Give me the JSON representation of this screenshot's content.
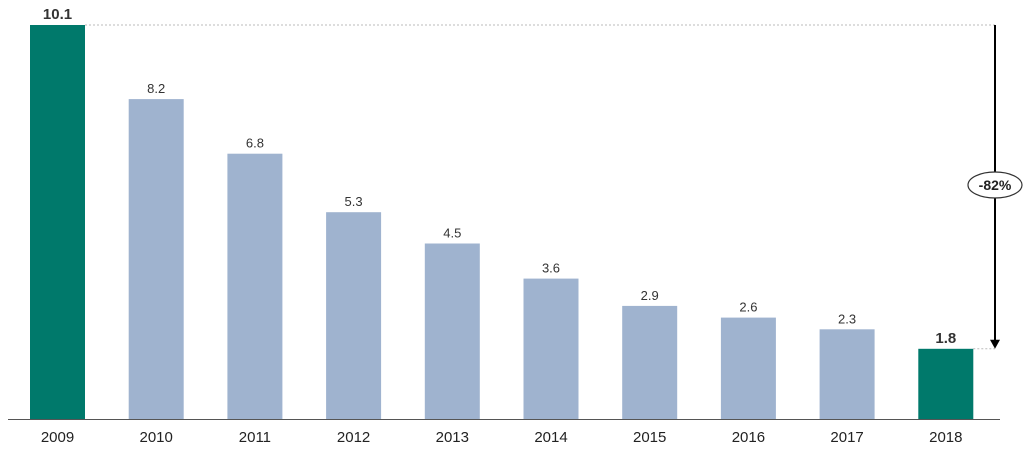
{
  "chart_data": {
    "type": "bar",
    "title": "",
    "xlabel": "",
    "ylabel": "",
    "categories": [
      "2009",
      "2010",
      "2011",
      "2012",
      "2013",
      "2014",
      "2015",
      "2016",
      "2017",
      "2018"
    ],
    "values": [
      10.1,
      8.2,
      6.8,
      5.3,
      4.5,
      3.6,
      2.9,
      2.6,
      2.3,
      1.8
    ],
    "value_labels": [
      "10.1",
      "8.2",
      "6.8",
      "5.3",
      "4.5",
      "3.6",
      "2.9",
      "2.6",
      "2.3",
      "1.8"
    ],
    "highlighted": [
      "2009",
      "2018"
    ],
    "ylim": [
      0,
      10.1
    ],
    "grid": false,
    "legend": "none",
    "colors": {
      "highlight": "#00796b",
      "default": "#9fb3cf",
      "axis": "#555555",
      "guide": "#bbbbbb",
      "arrow": "#000000",
      "badge_border": "#333333"
    },
    "annotation": {
      "from": "2009",
      "to": "2018",
      "label": "-82%"
    }
  }
}
